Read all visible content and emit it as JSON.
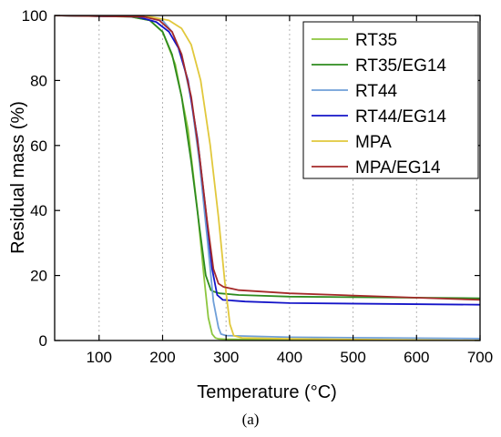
{
  "caption": "(a)",
  "chart_data": {
    "type": "line",
    "title": "",
    "xlabel": "Temperature (°C)",
    "ylabel": "Residual mass (%)",
    "xlim": [
      30,
      700
    ],
    "ylim": [
      0,
      100
    ],
    "xticks": [
      100,
      200,
      300,
      400,
      500,
      600,
      700
    ],
    "yticks": [
      0,
      20,
      40,
      60,
      80,
      100
    ],
    "grid": "vertical dotted",
    "legend_position": "top-right",
    "series": [
      {
        "name": "RT35",
        "color": "#8dc63f",
        "x": [
          30,
          150,
          180,
          200,
          220,
          240,
          255,
          265,
          272,
          278,
          283,
          288,
          300,
          400,
          700
        ],
        "y": [
          100,
          99.6,
          98.5,
          95,
          85,
          65,
          40,
          20,
          7,
          2,
          0.8,
          0.5,
          0.4,
          0.2,
          0
        ]
      },
      {
        "name": "RT35/EG14",
        "color": "#2e8b1e",
        "x": [
          30,
          150,
          180,
          200,
          215,
          230,
          245,
          258,
          268,
          276,
          281,
          290,
          320,
          400,
          700
        ],
        "y": [
          100,
          99.6,
          98.5,
          95,
          88,
          75,
          55,
          35,
          20,
          15.5,
          15,
          14.5,
          14,
          13.5,
          13
        ]
      },
      {
        "name": "RT44",
        "color": "#6f9fd8",
        "x": [
          30,
          170,
          200,
          215,
          230,
          245,
          258,
          270,
          280,
          288,
          292,
          300,
          400,
          700
        ],
        "y": [
          100,
          99.6,
          98.5,
          95,
          88,
          74,
          55,
          32,
          12,
          4,
          2,
          1.5,
          1,
          0.6
        ]
      },
      {
        "name": "RT44/EG14",
        "color": "#1414c8",
        "x": [
          30,
          160,
          190,
          210,
          225,
          240,
          255,
          268,
          278,
          286,
          295,
          330,
          400,
          700
        ],
        "y": [
          100,
          99.6,
          98,
          95,
          90,
          80,
          62,
          40,
          22,
          14,
          12.5,
          12,
          11.5,
          11
        ]
      },
      {
        "name": "MPA",
        "color": "#e1c83c",
        "x": [
          30,
          180,
          210,
          230,
          245,
          260,
          275,
          288,
          298,
          306,
          312,
          325,
          400,
          700
        ],
        "y": [
          100,
          99.6,
          98.5,
          96,
          91,
          80,
          60,
          38,
          18,
          5,
          1.5,
          0.8,
          0.5,
          0
        ]
      },
      {
        "name": "MPA/EG14",
        "color": "#a52a2a",
        "x": [
          30,
          170,
          195,
          215,
          230,
          245,
          258,
          270,
          280,
          288,
          296,
          320,
          400,
          700
        ],
        "y": [
          100,
          99.6,
          98.5,
          95,
          88,
          75,
          57,
          37,
          22,
          17.5,
          16.5,
          15.5,
          14.5,
          12.5
        ]
      }
    ]
  }
}
